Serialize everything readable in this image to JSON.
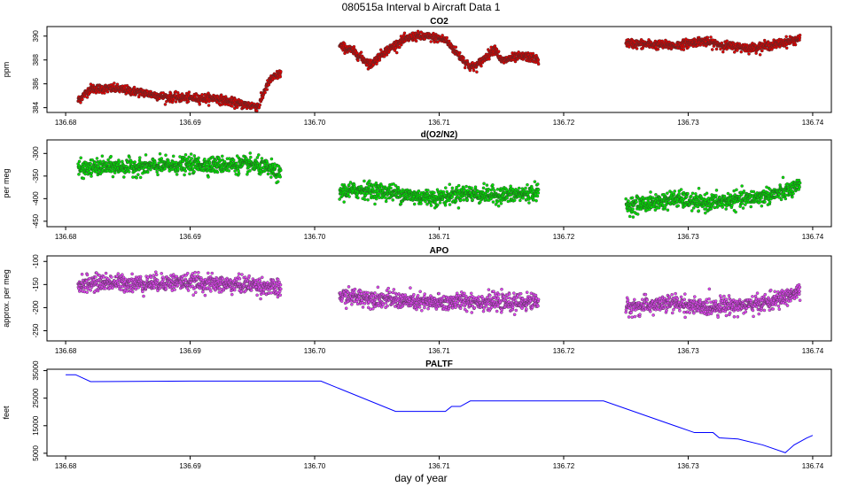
{
  "figure": {
    "title": "080515a   Interval b Aircraft Data 1",
    "xlabel": "day of year"
  },
  "chart_data": [
    {
      "type": "scatter",
      "title": "CO2",
      "ylabel": "ppm",
      "xlim": [
        136.6785,
        136.7415
      ],
      "ylim": [
        383.6,
        390.8
      ],
      "xticks": [
        136.68,
        136.69,
        136.7,
        136.71,
        136.72,
        136.73,
        136.74
      ],
      "xtick_labels": [
        "136.68",
        "136.69",
        "136.70",
        "136.71",
        "136.72",
        "136.73",
        "136.74"
      ],
      "yticks": [
        384,
        386,
        388,
        390
      ],
      "ytick_labels": [
        "384",
        "386",
        "388",
        "390"
      ],
      "color": "#e00000",
      "point_spacing": 2e-05,
      "noise": 0.18,
      "segments": [
        {
          "x": [
            136.681,
            136.682,
            136.684,
            136.686,
            136.688,
            136.69,
            136.692,
            136.694,
            136.6955,
            136.696,
            136.6965,
            136.6973
          ],
          "y": [
            384.6,
            385.6,
            385.6,
            385.3,
            384.9,
            384.8,
            384.8,
            384.3,
            384.1,
            385.5,
            386.4,
            386.9
          ]
        },
        {
          "x": [
            136.702,
            136.703,
            136.7045,
            136.7055,
            136.707,
            136.708,
            136.7095,
            136.7105,
            136.7115,
            136.7125,
            136.713,
            136.7145,
            136.715,
            136.716,
            136.717,
            136.718
          ],
          "y": [
            389.2,
            388.8,
            387.6,
            388.6,
            389.6,
            390.0,
            389.9,
            389.7,
            388.5,
            387.4,
            387.5,
            389.0,
            387.9,
            388.2,
            388.3,
            388.0
          ]
        },
        {
          "x": [
            136.725,
            136.727,
            136.729,
            136.731,
            136.733,
            136.735,
            136.737,
            136.739
          ],
          "y": [
            389.4,
            389.3,
            389.2,
            389.6,
            389.2,
            389.0,
            389.3,
            389.8
          ]
        }
      ]
    },
    {
      "type": "scatter",
      "title": "d(O2/N2)",
      "ylabel": "per meg",
      "xlim": [
        136.6785,
        136.7415
      ],
      "ylim": [
        -462,
        -270
      ],
      "xticks": [
        136.68,
        136.69,
        136.7,
        136.71,
        136.72,
        136.73,
        136.74
      ],
      "xtick_labels": [
        "136.68",
        "136.69",
        "136.70",
        "136.71",
        "136.72",
        "136.73",
        "136.74"
      ],
      "yticks": [
        -450,
        -400,
        -350,
        -300
      ],
      "ytick_labels": [
        "-450",
        "-400",
        "-350",
        "-300"
      ],
      "color": "#00e000",
      "point_spacing": 2e-05,
      "noise": 9,
      "segments": [
        {
          "x": [
            136.681,
            136.683,
            136.686,
            136.688,
            136.69,
            136.693,
            136.695,
            136.6965,
            136.6973
          ],
          "y": [
            -335,
            -330,
            -330,
            -327,
            -325,
            -325,
            -325,
            -335,
            -350
          ]
        },
        {
          "x": [
            136.702,
            136.704,
            136.706,
            136.708,
            136.71,
            136.712,
            136.714,
            136.716,
            136.718
          ],
          "y": [
            -385,
            -380,
            -385,
            -395,
            -398,
            -388,
            -392,
            -392,
            -385
          ]
        },
        {
          "x": [
            136.725,
            136.727,
            136.729,
            136.731,
            136.733,
            136.735,
            136.737,
            136.739
          ],
          "y": [
            -415,
            -410,
            -400,
            -410,
            -405,
            -400,
            -390,
            -375
          ]
        }
      ]
    },
    {
      "type": "scatter",
      "title": "APO",
      "ylabel": "approx. per meg",
      "xlim": [
        136.6785,
        136.7415
      ],
      "ylim": [
        -272,
        -88
      ],
      "xticks": [
        136.68,
        136.69,
        136.7,
        136.71,
        136.72,
        136.73,
        136.74
      ],
      "xtick_labels": [
        "136.68",
        "136.69",
        "136.70",
        "136.71",
        "136.72",
        "136.73",
        "136.74"
      ],
      "yticks": [
        -250,
        -200,
        -150,
        -100
      ],
      "ytick_labels": [
        "-250",
        "-200",
        "-150",
        "-100"
      ],
      "color": "#dd44ee",
      "point_spacing": 2e-05,
      "noise": 9,
      "segments": [
        {
          "x": [
            136.681,
            136.683,
            136.686,
            136.688,
            136.69,
            136.693,
            136.695,
            136.6973
          ],
          "y": [
            -150,
            -145,
            -148,
            -145,
            -145,
            -150,
            -150,
            -160
          ]
        },
        {
          "x": [
            136.702,
            136.704,
            136.706,
            136.708,
            136.71,
            136.712,
            136.714,
            136.716,
            136.718
          ],
          "y": [
            -175,
            -178,
            -182,
            -188,
            -190,
            -185,
            -188,
            -190,
            -185
          ]
        },
        {
          "x": [
            136.725,
            136.727,
            136.729,
            136.731,
            136.733,
            136.735,
            136.737,
            136.739
          ],
          "y": [
            -200,
            -195,
            -190,
            -200,
            -195,
            -195,
            -185,
            -165
          ]
        }
      ]
    },
    {
      "type": "line",
      "title": "PALTF",
      "ylabel": "feet",
      "xlim": [
        136.6785,
        136.7415
      ],
      "ylim": [
        4000,
        35500
      ],
      "xticks": [
        136.68,
        136.69,
        136.7,
        136.71,
        136.72,
        136.73,
        136.74
      ],
      "xtick_labels": [
        "136.68",
        "136.69",
        "136.70",
        "136.71",
        "136.72",
        "136.73",
        "136.74"
      ],
      "yticks": [
        5000,
        15000,
        25000,
        35000
      ],
      "ytick_labels": [
        "5000",
        "15000",
        "25000",
        "35000"
      ],
      "color": "#0000ff",
      "series": [
        {
          "name": "PALTF",
          "x": [
            136.68,
            136.6808,
            136.682,
            136.69,
            136.7005,
            136.7065,
            136.7105,
            136.711,
            136.7117,
            136.7125,
            136.7232,
            136.7305,
            136.732,
            136.7325,
            136.734,
            136.736,
            136.7378,
            136.7385,
            136.7395,
            136.74
          ],
          "y": [
            33500,
            33500,
            31000,
            31200,
            31200,
            20200,
            20200,
            22000,
            22000,
            24000,
            24000,
            12500,
            12500,
            10600,
            10200,
            8000,
            5200,
            8000,
            10500,
            11500
          ]
        }
      ]
    }
  ]
}
